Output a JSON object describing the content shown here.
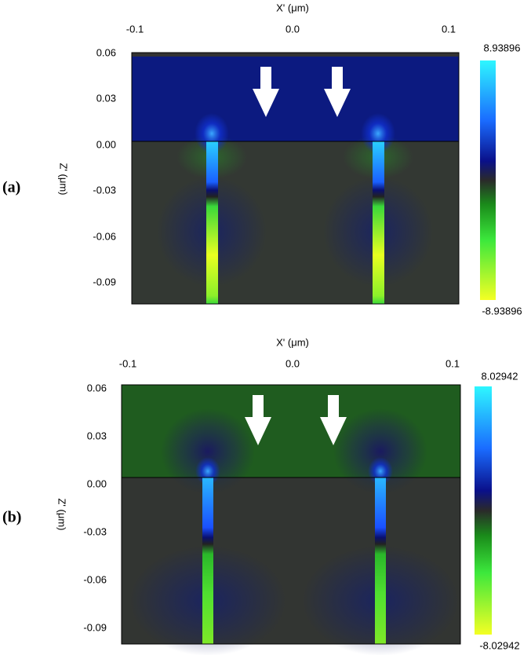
{
  "panels": [
    {
      "label": "(a)",
      "x_axis_label": "X' (μm)",
      "y_axis_label": "Z' (μm)",
      "x_ticks": [
        "-0.1",
        "0.0",
        "0.1"
      ],
      "y_ticks": [
        "0.06",
        "0.03",
        "0.00",
        "-0.03",
        "-0.06",
        "-0.09"
      ],
      "colorbar_max": "8.93896",
      "colorbar_min": "-8.93896"
    },
    {
      "label": "(b)",
      "x_axis_label": "X' (μm)",
      "y_axis_label": "Z' (μm)",
      "x_ticks": [
        "-0.1",
        "0.0",
        "0.1"
      ],
      "y_ticks": [
        "0.06",
        "0.03",
        "0.00",
        "-0.03",
        "-0.06",
        "-0.09"
      ],
      "colorbar_max": "8.02942",
      "colorbar_min": "-8.02942"
    }
  ]
}
